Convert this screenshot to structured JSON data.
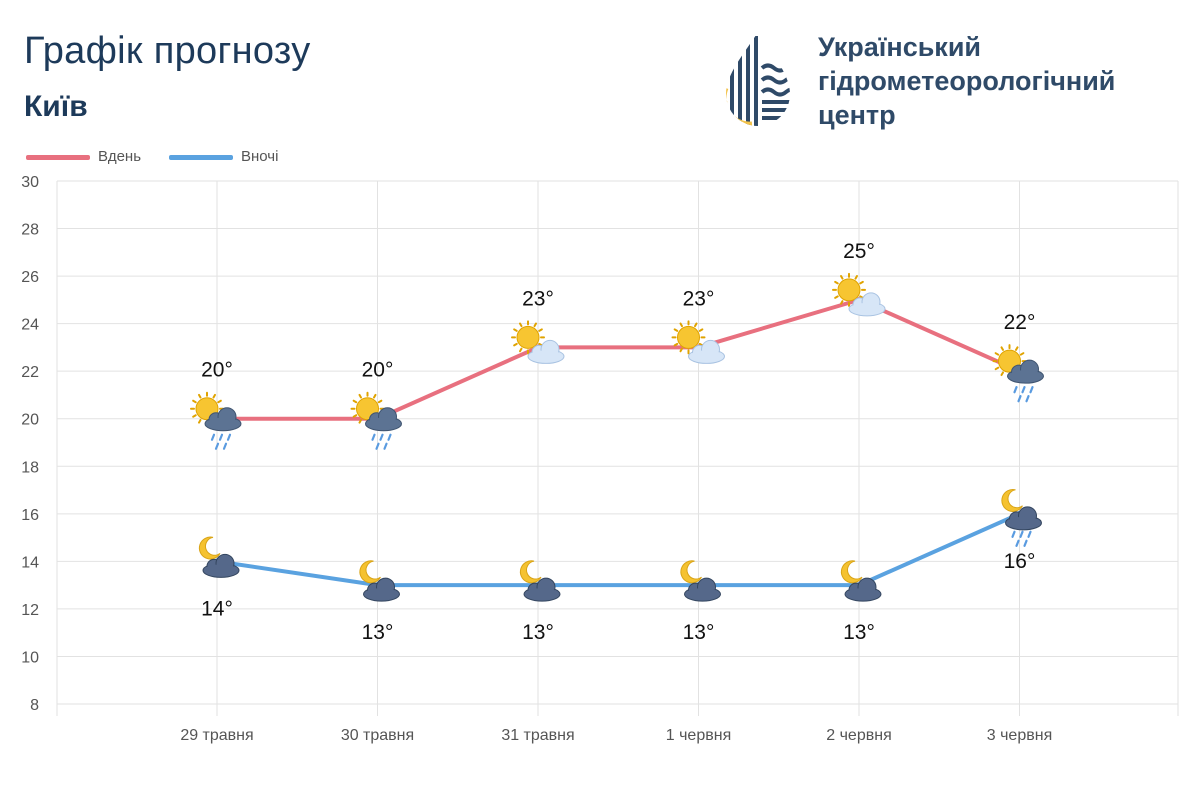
{
  "header": {
    "title": "Графік прогнозу",
    "city": "Київ"
  },
  "organization": {
    "name_lines": [
      "Український",
      "гідрометеорологічний",
      "центр"
    ]
  },
  "colors": {
    "day": "#e8707f",
    "night": "#5aa2e0",
    "grid": "#e2e2e2",
    "axis_text": "#555555",
    "title": "#1d3a5a",
    "logo_dark": "#2f4a68",
    "logo_yellow": "#f2c24a"
  },
  "chart_data": {
    "type": "line",
    "categories": [
      "29 травня",
      "30 травня",
      "31 травня",
      "1 червня",
      "2 червня",
      "3 червня"
    ],
    "series": [
      {
        "name": "Вдень",
        "values": [
          20,
          20,
          23,
          23,
          25,
          22
        ],
        "labels": [
          "20°",
          "20°",
          "23°",
          "23°",
          "25°",
          "22°"
        ],
        "icons": [
          "sun-cloud-rain-icon",
          "sun-cloud-rain-icon",
          "sun-cloud-icon",
          "sun-cloud-icon",
          "sun-cloud-icon",
          "sun-cloud-rain-icon"
        ]
      },
      {
        "name": "Вночі",
        "values": [
          14,
          13,
          13,
          13,
          13,
          16
        ],
        "labels": [
          "14°",
          "13°",
          "13°",
          "13°",
          "13°",
          "16°"
        ],
        "icons": [
          "moon-cloud-icon",
          "moon-cloud-icon",
          "moon-cloud-icon",
          "moon-cloud-icon",
          "moon-cloud-icon",
          "moon-cloud-rain-icon"
        ]
      }
    ],
    "ylim": [
      8,
      30
    ],
    "yticks": [
      8,
      10,
      12,
      14,
      16,
      18,
      20,
      22,
      24,
      26,
      28,
      30
    ],
    "grid": true,
    "legend": "top-left"
  }
}
